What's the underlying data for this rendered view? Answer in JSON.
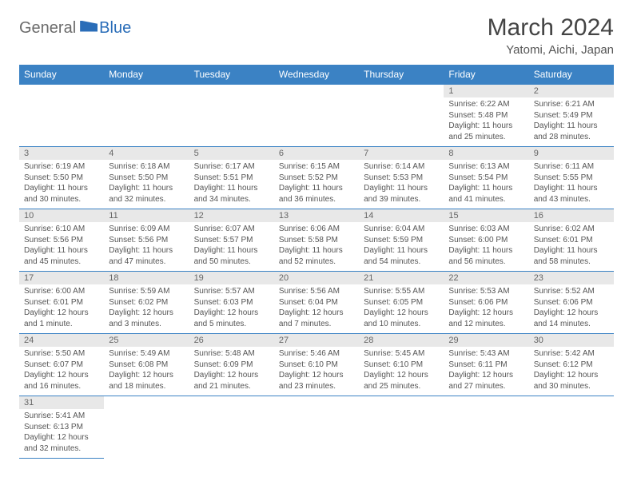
{
  "logo": {
    "gray": "General",
    "blue": "Blue"
  },
  "title": "March 2024",
  "location": "Yatomi, Aichi, Japan",
  "colors": {
    "header_bg": "#3b82c4",
    "header_text": "#ffffff",
    "daynum_bg": "#e8e8e8",
    "border": "#3b82c4",
    "logo_gray": "#6b6b6b",
    "logo_blue": "#2a6db8"
  },
  "weekdays": [
    "Sunday",
    "Monday",
    "Tuesday",
    "Wednesday",
    "Thursday",
    "Friday",
    "Saturday"
  ],
  "weeks": [
    [
      null,
      null,
      null,
      null,
      null,
      {
        "n": "1",
        "sr": "Sunrise: 6:22 AM",
        "ss": "Sunset: 5:48 PM",
        "dl": "Daylight: 11 hours and 25 minutes."
      },
      {
        "n": "2",
        "sr": "Sunrise: 6:21 AM",
        "ss": "Sunset: 5:49 PM",
        "dl": "Daylight: 11 hours and 28 minutes."
      }
    ],
    [
      {
        "n": "3",
        "sr": "Sunrise: 6:19 AM",
        "ss": "Sunset: 5:50 PM",
        "dl": "Daylight: 11 hours and 30 minutes."
      },
      {
        "n": "4",
        "sr": "Sunrise: 6:18 AM",
        "ss": "Sunset: 5:50 PM",
        "dl": "Daylight: 11 hours and 32 minutes."
      },
      {
        "n": "5",
        "sr": "Sunrise: 6:17 AM",
        "ss": "Sunset: 5:51 PM",
        "dl": "Daylight: 11 hours and 34 minutes."
      },
      {
        "n": "6",
        "sr": "Sunrise: 6:15 AM",
        "ss": "Sunset: 5:52 PM",
        "dl": "Daylight: 11 hours and 36 minutes."
      },
      {
        "n": "7",
        "sr": "Sunrise: 6:14 AM",
        "ss": "Sunset: 5:53 PM",
        "dl": "Daylight: 11 hours and 39 minutes."
      },
      {
        "n": "8",
        "sr": "Sunrise: 6:13 AM",
        "ss": "Sunset: 5:54 PM",
        "dl": "Daylight: 11 hours and 41 minutes."
      },
      {
        "n": "9",
        "sr": "Sunrise: 6:11 AM",
        "ss": "Sunset: 5:55 PM",
        "dl": "Daylight: 11 hours and 43 minutes."
      }
    ],
    [
      {
        "n": "10",
        "sr": "Sunrise: 6:10 AM",
        "ss": "Sunset: 5:56 PM",
        "dl": "Daylight: 11 hours and 45 minutes."
      },
      {
        "n": "11",
        "sr": "Sunrise: 6:09 AM",
        "ss": "Sunset: 5:56 PM",
        "dl": "Daylight: 11 hours and 47 minutes."
      },
      {
        "n": "12",
        "sr": "Sunrise: 6:07 AM",
        "ss": "Sunset: 5:57 PM",
        "dl": "Daylight: 11 hours and 50 minutes."
      },
      {
        "n": "13",
        "sr": "Sunrise: 6:06 AM",
        "ss": "Sunset: 5:58 PM",
        "dl": "Daylight: 11 hours and 52 minutes."
      },
      {
        "n": "14",
        "sr": "Sunrise: 6:04 AM",
        "ss": "Sunset: 5:59 PM",
        "dl": "Daylight: 11 hours and 54 minutes."
      },
      {
        "n": "15",
        "sr": "Sunrise: 6:03 AM",
        "ss": "Sunset: 6:00 PM",
        "dl": "Daylight: 11 hours and 56 minutes."
      },
      {
        "n": "16",
        "sr": "Sunrise: 6:02 AM",
        "ss": "Sunset: 6:01 PM",
        "dl": "Daylight: 11 hours and 58 minutes."
      }
    ],
    [
      {
        "n": "17",
        "sr": "Sunrise: 6:00 AM",
        "ss": "Sunset: 6:01 PM",
        "dl": "Daylight: 12 hours and 1 minute."
      },
      {
        "n": "18",
        "sr": "Sunrise: 5:59 AM",
        "ss": "Sunset: 6:02 PM",
        "dl": "Daylight: 12 hours and 3 minutes."
      },
      {
        "n": "19",
        "sr": "Sunrise: 5:57 AM",
        "ss": "Sunset: 6:03 PM",
        "dl": "Daylight: 12 hours and 5 minutes."
      },
      {
        "n": "20",
        "sr": "Sunrise: 5:56 AM",
        "ss": "Sunset: 6:04 PM",
        "dl": "Daylight: 12 hours and 7 minutes."
      },
      {
        "n": "21",
        "sr": "Sunrise: 5:55 AM",
        "ss": "Sunset: 6:05 PM",
        "dl": "Daylight: 12 hours and 10 minutes."
      },
      {
        "n": "22",
        "sr": "Sunrise: 5:53 AM",
        "ss": "Sunset: 6:06 PM",
        "dl": "Daylight: 12 hours and 12 minutes."
      },
      {
        "n": "23",
        "sr": "Sunrise: 5:52 AM",
        "ss": "Sunset: 6:06 PM",
        "dl": "Daylight: 12 hours and 14 minutes."
      }
    ],
    [
      {
        "n": "24",
        "sr": "Sunrise: 5:50 AM",
        "ss": "Sunset: 6:07 PM",
        "dl": "Daylight: 12 hours and 16 minutes."
      },
      {
        "n": "25",
        "sr": "Sunrise: 5:49 AM",
        "ss": "Sunset: 6:08 PM",
        "dl": "Daylight: 12 hours and 18 minutes."
      },
      {
        "n": "26",
        "sr": "Sunrise: 5:48 AM",
        "ss": "Sunset: 6:09 PM",
        "dl": "Daylight: 12 hours and 21 minutes."
      },
      {
        "n": "27",
        "sr": "Sunrise: 5:46 AM",
        "ss": "Sunset: 6:10 PM",
        "dl": "Daylight: 12 hours and 23 minutes."
      },
      {
        "n": "28",
        "sr": "Sunrise: 5:45 AM",
        "ss": "Sunset: 6:10 PM",
        "dl": "Daylight: 12 hours and 25 minutes."
      },
      {
        "n": "29",
        "sr": "Sunrise: 5:43 AM",
        "ss": "Sunset: 6:11 PM",
        "dl": "Daylight: 12 hours and 27 minutes."
      },
      {
        "n": "30",
        "sr": "Sunrise: 5:42 AM",
        "ss": "Sunset: 6:12 PM",
        "dl": "Daylight: 12 hours and 30 minutes."
      }
    ],
    [
      {
        "n": "31",
        "sr": "Sunrise: 5:41 AM",
        "ss": "Sunset: 6:13 PM",
        "dl": "Daylight: 12 hours and 32 minutes."
      },
      null,
      null,
      null,
      null,
      null,
      null
    ]
  ]
}
